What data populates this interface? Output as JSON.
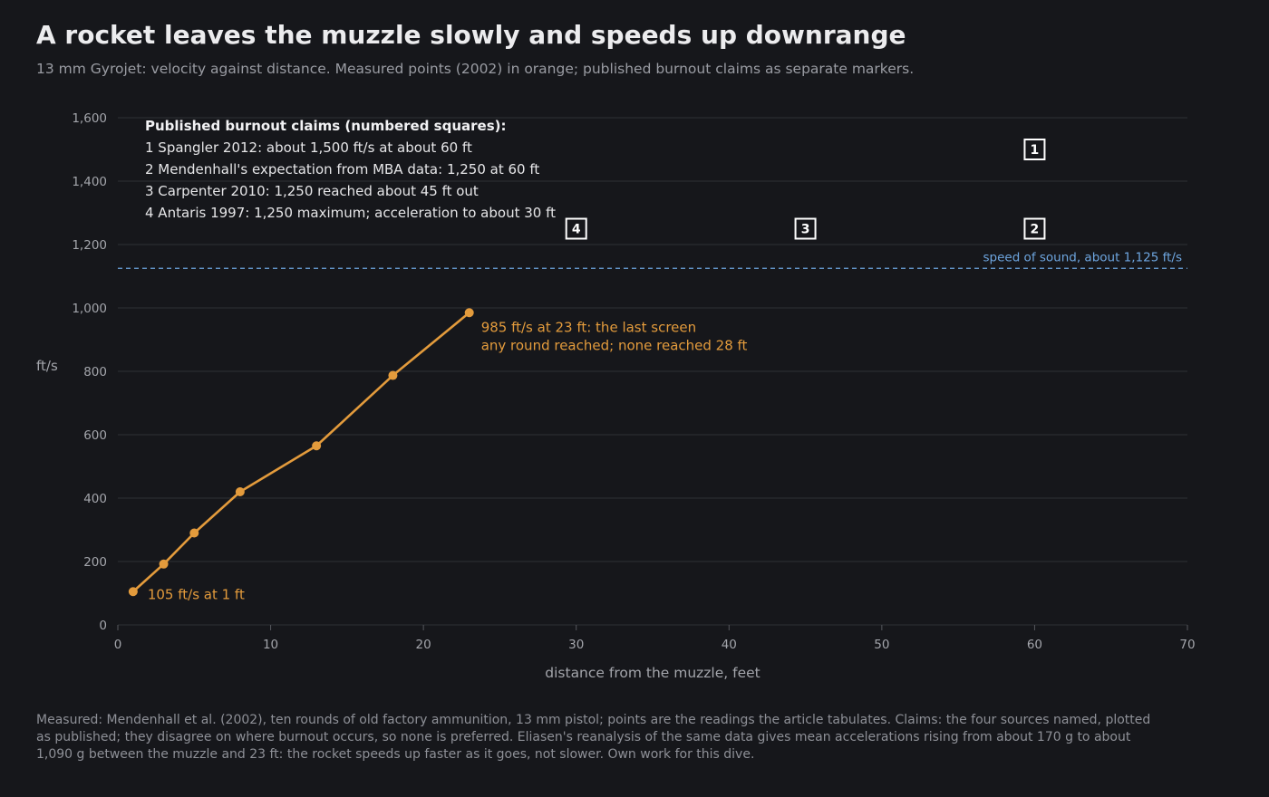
{
  "header": {
    "title": "A rocket leaves the muzzle slowly and speeds up downrange",
    "subtitle": "13 mm Gyrojet: velocity against distance. Measured points (2002) in orange; published burnout claims as separate markers."
  },
  "footnote": "Measured: Mendenhall et al. (2002), ten rounds of old factory ammunition, 13 mm pistol; points are the readings the article tabulates. Claims: the four sources named, plotted as published; they disagree on where burnout occurs, so none is preferred. Eliasen's reanalysis of the same data gives mean accelerations rising from about 170 g to about 1,090 g between the muzzle and 23 ft: the rocket speeds up faster as it goes, not slower. Own work for this dive.",
  "colors": {
    "background": "#16171b",
    "measured": "#e39b3c",
    "reference_line": "#6ea6e0",
    "claim_marker": "#ffffff",
    "grid": "#2b2c31",
    "tick_text": "#a3a5ab"
  },
  "chart_data": {
    "type": "line",
    "xlabel": "distance from the muzzle, feet",
    "ylabel": "ft/s",
    "xlim": [
      0,
      70
    ],
    "ylim": [
      0,
      1600
    ],
    "xticks": [
      0,
      10,
      20,
      30,
      40,
      50,
      60,
      70
    ],
    "xtick_labels": [
      "0",
      "10",
      "20",
      "30",
      "40",
      "50",
      "60",
      "70"
    ],
    "yticks": [
      0,
      200,
      400,
      600,
      800,
      1000,
      1200,
      1400,
      1600
    ],
    "ytick_labels": [
      "0",
      "200",
      "400",
      "600",
      "800",
      "1,000",
      "1,200",
      "1,400",
      "1,600"
    ],
    "grid": "horizontal",
    "series": [
      {
        "color": "#e39b3c",
        "points": [
          {
            "x": 1,
            "y": 105
          },
          {
            "x": 3,
            "y": 192
          },
          {
            "x": 5,
            "y": 290
          },
          {
            "x": 8,
            "y": 420
          },
          {
            "x": 13,
            "y": 565
          },
          {
            "x": 18,
            "y": 787
          },
          {
            "x": 23,
            "y": 985
          }
        ]
      }
    ],
    "reference_line": {
      "y": 1125,
      "label": "speed of sound, about 1,125 ft/s"
    },
    "claims": [
      {
        "num": "1",
        "x": 60,
        "y": 1500
      },
      {
        "num": "2",
        "x": 60,
        "y": 1250
      },
      {
        "num": "3",
        "x": 45,
        "y": 1250
      },
      {
        "num": "4",
        "x": 30,
        "y": 1250
      }
    ],
    "claims_legend": {
      "title": "Published burnout claims (numbered squares):",
      "lines": [
        "1 Spangler 2012: about 1,500 ft/s at about 60 ft",
        "2 Mendenhall's expectation from MBA data: 1,250 at 60 ft",
        "3 Carpenter 2010: 1,250 reached about 45 ft out",
        "4 Antaris 1997: 1,250 maximum; acceleration to about 30 ft"
      ]
    },
    "annotations": [
      {
        "x": 1,
        "y": 105,
        "lines": [
          "105 ft/s at 1 ft"
        ]
      },
      {
        "x": 23,
        "y": 985,
        "lines": [
          "985 ft/s at 23 ft: the last screen",
          "any round reached; none reached 28 ft"
        ]
      }
    ]
  }
}
